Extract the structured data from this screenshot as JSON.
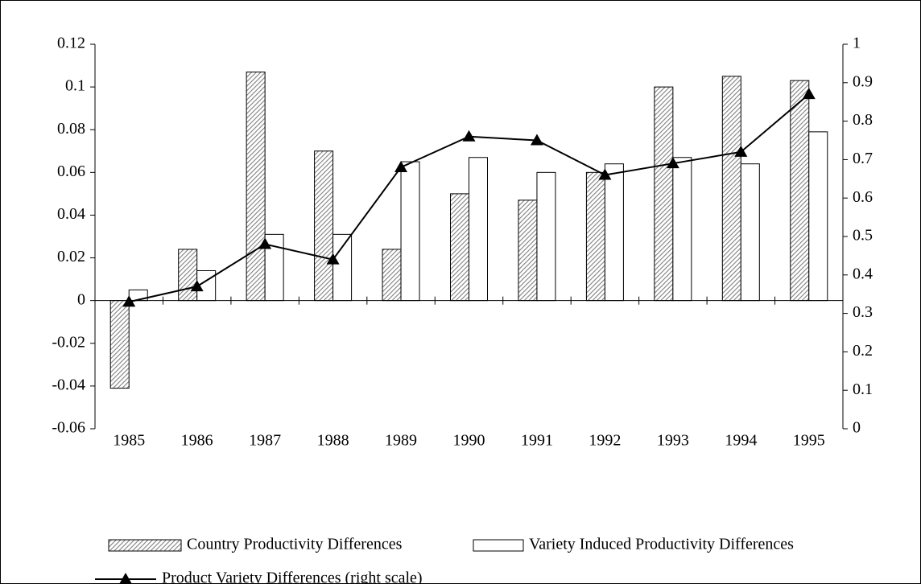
{
  "chart_data": {
    "type": "bar",
    "categories": [
      "1985",
      "1986",
      "1987",
      "1988",
      "1989",
      "1990",
      "1991",
      "1992",
      "1993",
      "1994",
      "1995"
    ],
    "series": [
      {
        "name": "Country Productivity Differences",
        "type": "bar",
        "color": "#808080",
        "pattern": "hatched",
        "values": [
          -0.041,
          0.024,
          0.107,
          0.07,
          0.024,
          0.05,
          0.047,
          0.06,
          0.1,
          0.105,
          0.103
        ]
      },
      {
        "name": "Variety Induced Productivity Differences",
        "type": "bar",
        "color": "#ffffff",
        "values": [
          0.005,
          0.014,
          0.031,
          0.031,
          0.065,
          0.067,
          0.06,
          0.064,
          0.067,
          0.064,
          0.079
        ]
      },
      {
        "name": "Product Variety Differences (right scale)",
        "type": "line",
        "axis": "y2",
        "color": "#000000",
        "marker": "triangle",
        "values": [
          0.33,
          0.37,
          0.48,
          0.44,
          0.68,
          0.76,
          0.75,
          0.66,
          0.69,
          0.72,
          0.87
        ]
      }
    ],
    "ylim": [
      -0.06,
      0.12
    ],
    "yticks": [
      -0.06,
      -0.04,
      -0.02,
      0,
      0.02,
      0.04,
      0.06,
      0.08,
      0.1,
      0.12
    ],
    "y2lim": [
      0,
      1
    ],
    "y2ticks": [
      0,
      0.1,
      0.2,
      0.3,
      0.4,
      0.5,
      0.6,
      0.7,
      0.8,
      0.9,
      1
    ],
    "grid": false
  }
}
